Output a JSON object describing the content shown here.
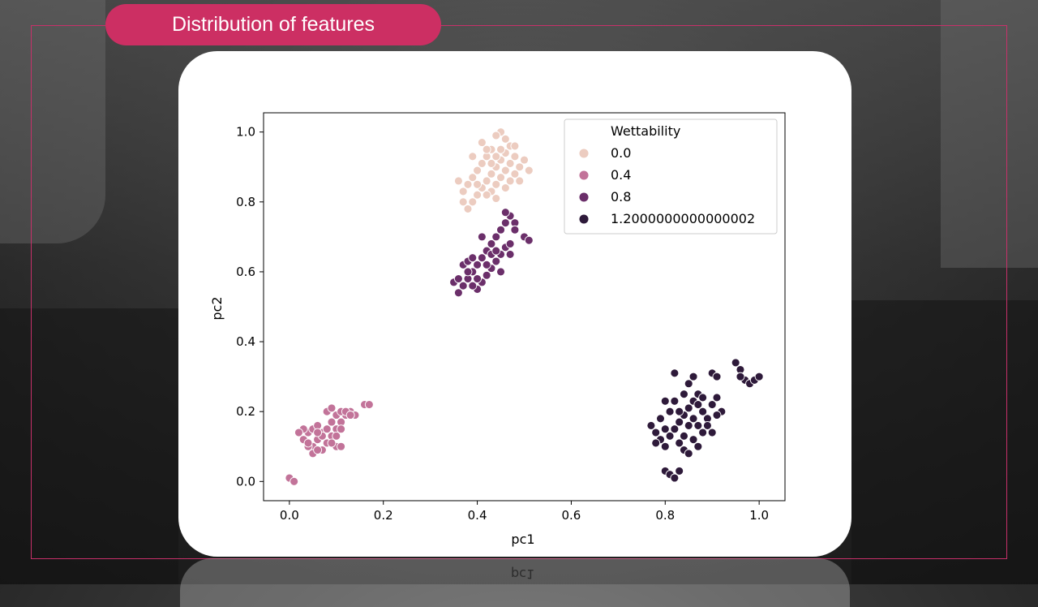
{
  "slide": {
    "title": "Distribution of features",
    "reflection_text": "pc1"
  },
  "chart_data": {
    "type": "scatter",
    "xlabel": "pc1",
    "ylabel": "pc2",
    "xlim": [
      -0.055,
      1.055
    ],
    "ylim": [
      -0.055,
      1.055
    ],
    "xticks": [
      "0.0",
      "0.2",
      "0.4",
      "0.6",
      "0.8",
      "1.0"
    ],
    "yticks": [
      "0.0",
      "0.2",
      "0.4",
      "0.6",
      "0.8",
      "1.0"
    ],
    "grid": false,
    "legend": {
      "title": "Wettability",
      "placement": "top-right",
      "entries": [
        "0.0",
        "0.4",
        "0.8",
        "1.2000000000000002"
      ]
    },
    "colors": [
      "#ecccc0",
      "#c27399",
      "#6b2f6a",
      "#2e1a3a"
    ],
    "series": [
      {
        "name": "0.0",
        "color": "#ecccc0",
        "points": [
          [
            0.38,
            0.78
          ],
          [
            0.39,
            0.8
          ],
          [
            0.4,
            0.82
          ],
          [
            0.41,
            0.84
          ],
          [
            0.42,
            0.86
          ],
          [
            0.43,
            0.88
          ],
          [
            0.44,
            0.9
          ],
          [
            0.45,
            0.92
          ],
          [
            0.46,
            0.94
          ],
          [
            0.47,
            0.96
          ],
          [
            0.45,
            1.0
          ],
          [
            0.44,
            0.99
          ],
          [
            0.46,
            0.98
          ],
          [
            0.43,
            0.95
          ],
          [
            0.42,
            0.93
          ],
          [
            0.41,
            0.91
          ],
          [
            0.4,
            0.89
          ],
          [
            0.39,
            0.87
          ],
          [
            0.38,
            0.85
          ],
          [
            0.37,
            0.83
          ],
          [
            0.44,
            0.85
          ],
          [
            0.45,
            0.87
          ],
          [
            0.46,
            0.89
          ],
          [
            0.47,
            0.91
          ],
          [
            0.48,
            0.93
          ],
          [
            0.49,
            0.9
          ],
          [
            0.5,
            0.92
          ],
          [
            0.51,
            0.89
          ],
          [
            0.41,
            0.97
          ],
          [
            0.42,
            0.95
          ],
          [
            0.43,
            0.83
          ],
          [
            0.44,
            0.81
          ],
          [
            0.46,
            0.84
          ],
          [
            0.47,
            0.86
          ],
          [
            0.48,
            0.88
          ],
          [
            0.4,
            0.85
          ],
          [
            0.39,
            0.93
          ],
          [
            0.43,
            0.91
          ],
          [
            0.45,
            0.95
          ],
          [
            0.48,
            0.96
          ],
          [
            0.36,
            0.86
          ],
          [
            0.37,
            0.8
          ],
          [
            0.42,
            0.82
          ],
          [
            0.49,
            0.86
          ],
          [
            0.44,
            0.93
          ]
        ]
      },
      {
        "name": "0.4",
        "color": "#c27399",
        "points": [
          [
            0.0,
            0.01
          ],
          [
            0.01,
            0.0
          ],
          [
            0.03,
            0.12
          ],
          [
            0.04,
            0.14
          ],
          [
            0.05,
            0.1
          ],
          [
            0.06,
            0.12
          ],
          [
            0.07,
            0.09
          ],
          [
            0.08,
            0.11
          ],
          [
            0.09,
            0.13
          ],
          [
            0.1,
            0.15
          ],
          [
            0.11,
            0.17
          ],
          [
            0.12,
            0.19
          ],
          [
            0.13,
            0.2
          ],
          [
            0.08,
            0.2
          ],
          [
            0.09,
            0.21
          ],
          [
            0.1,
            0.19
          ],
          [
            0.11,
            0.2
          ],
          [
            0.05,
            0.15
          ],
          [
            0.06,
            0.16
          ],
          [
            0.07,
            0.14
          ],
          [
            0.04,
            0.1
          ],
          [
            0.05,
            0.08
          ],
          [
            0.1,
            0.1
          ],
          [
            0.11,
            0.1
          ],
          [
            0.12,
            0.2
          ],
          [
            0.14,
            0.19
          ],
          [
            0.16,
            0.22
          ],
          [
            0.17,
            0.22
          ],
          [
            0.07,
            0.13
          ],
          [
            0.08,
            0.15
          ],
          [
            0.09,
            0.17
          ],
          [
            0.06,
            0.09
          ],
          [
            0.03,
            0.15
          ],
          [
            0.04,
            0.11
          ],
          [
            0.09,
            0.11
          ],
          [
            0.1,
            0.13
          ],
          [
            0.02,
            0.14
          ],
          [
            0.06,
            0.14
          ],
          [
            0.11,
            0.15
          ],
          [
            0.13,
            0.19
          ]
        ]
      },
      {
        "name": "0.8",
        "color": "#6b2f6a",
        "points": [
          [
            0.35,
            0.57
          ],
          [
            0.36,
            0.54
          ],
          [
            0.37,
            0.56
          ],
          [
            0.38,
            0.58
          ],
          [
            0.39,
            0.6
          ],
          [
            0.4,
            0.62
          ],
          [
            0.41,
            0.64
          ],
          [
            0.42,
            0.66
          ],
          [
            0.43,
            0.68
          ],
          [
            0.44,
            0.7
          ],
          [
            0.45,
            0.72
          ],
          [
            0.46,
            0.74
          ],
          [
            0.47,
            0.76
          ],
          [
            0.46,
            0.77
          ],
          [
            0.48,
            0.74
          ],
          [
            0.48,
            0.72
          ],
          [
            0.5,
            0.7
          ],
          [
            0.51,
            0.69
          ],
          [
            0.44,
            0.63
          ],
          [
            0.43,
            0.61
          ],
          [
            0.42,
            0.59
          ],
          [
            0.41,
            0.57
          ],
          [
            0.4,
            0.55
          ],
          [
            0.39,
            0.56
          ],
          [
            0.38,
            0.6
          ],
          [
            0.37,
            0.62
          ],
          [
            0.45,
            0.65
          ],
          [
            0.46,
            0.67
          ],
          [
            0.47,
            0.65
          ],
          [
            0.41,
            0.7
          ],
          [
            0.42,
            0.62
          ],
          [
            0.4,
            0.58
          ],
          [
            0.36,
            0.58
          ],
          [
            0.38,
            0.63
          ],
          [
            0.43,
            0.65
          ],
          [
            0.44,
            0.66
          ],
          [
            0.45,
            0.6
          ],
          [
            0.39,
            0.64
          ],
          [
            0.47,
            0.68
          ]
        ]
      },
      {
        "name": "1.2000000000000002",
        "color": "#2e1a3a",
        "points": [
          [
            0.77,
            0.16
          ],
          [
            0.78,
            0.14
          ],
          [
            0.79,
            0.12
          ],
          [
            0.8,
            0.1
          ],
          [
            0.81,
            0.13
          ],
          [
            0.82,
            0.15
          ],
          [
            0.83,
            0.17
          ],
          [
            0.84,
            0.19
          ],
          [
            0.85,
            0.21
          ],
          [
            0.86,
            0.23
          ],
          [
            0.87,
            0.25
          ],
          [
            0.88,
            0.2
          ],
          [
            0.89,
            0.18
          ],
          [
            0.9,
            0.22
          ],
          [
            0.91,
            0.24
          ],
          [
            0.92,
            0.2
          ],
          [
            0.8,
            0.03
          ],
          [
            0.81,
            0.02
          ],
          [
            0.82,
            0.01
          ],
          [
            0.83,
            0.03
          ],
          [
            0.82,
            0.31
          ],
          [
            0.85,
            0.28
          ],
          [
            0.86,
            0.3
          ],
          [
            0.9,
            0.31
          ],
          [
            0.91,
            0.3
          ],
          [
            0.95,
            0.34
          ],
          [
            0.96,
            0.32
          ],
          [
            0.97,
            0.29
          ],
          [
            0.98,
            0.28
          ],
          [
            0.99,
            0.29
          ],
          [
            1.0,
            0.3
          ],
          [
            0.96,
            0.3
          ],
          [
            0.8,
            0.23
          ],
          [
            0.81,
            0.2
          ],
          [
            0.83,
            0.11
          ],
          [
            0.84,
            0.09
          ],
          [
            0.86,
            0.12
          ],
          [
            0.87,
            0.1
          ],
          [
            0.88,
            0.14
          ],
          [
            0.89,
            0.16
          ],
          [
            0.85,
            0.16
          ],
          [
            0.84,
            0.13
          ],
          [
            0.83,
            0.2
          ],
          [
            0.86,
            0.18
          ],
          [
            0.87,
            0.22
          ],
          [
            0.88,
            0.24
          ],
          [
            0.79,
            0.18
          ],
          [
            0.82,
            0.23
          ],
          [
            0.85,
            0.08
          ],
          [
            0.9,
            0.14
          ],
          [
            0.91,
            0.19
          ],
          [
            0.84,
            0.25
          ],
          [
            0.87,
            0.16
          ],
          [
            0.8,
            0.15
          ],
          [
            0.78,
            0.11
          ]
        ]
      }
    ]
  }
}
